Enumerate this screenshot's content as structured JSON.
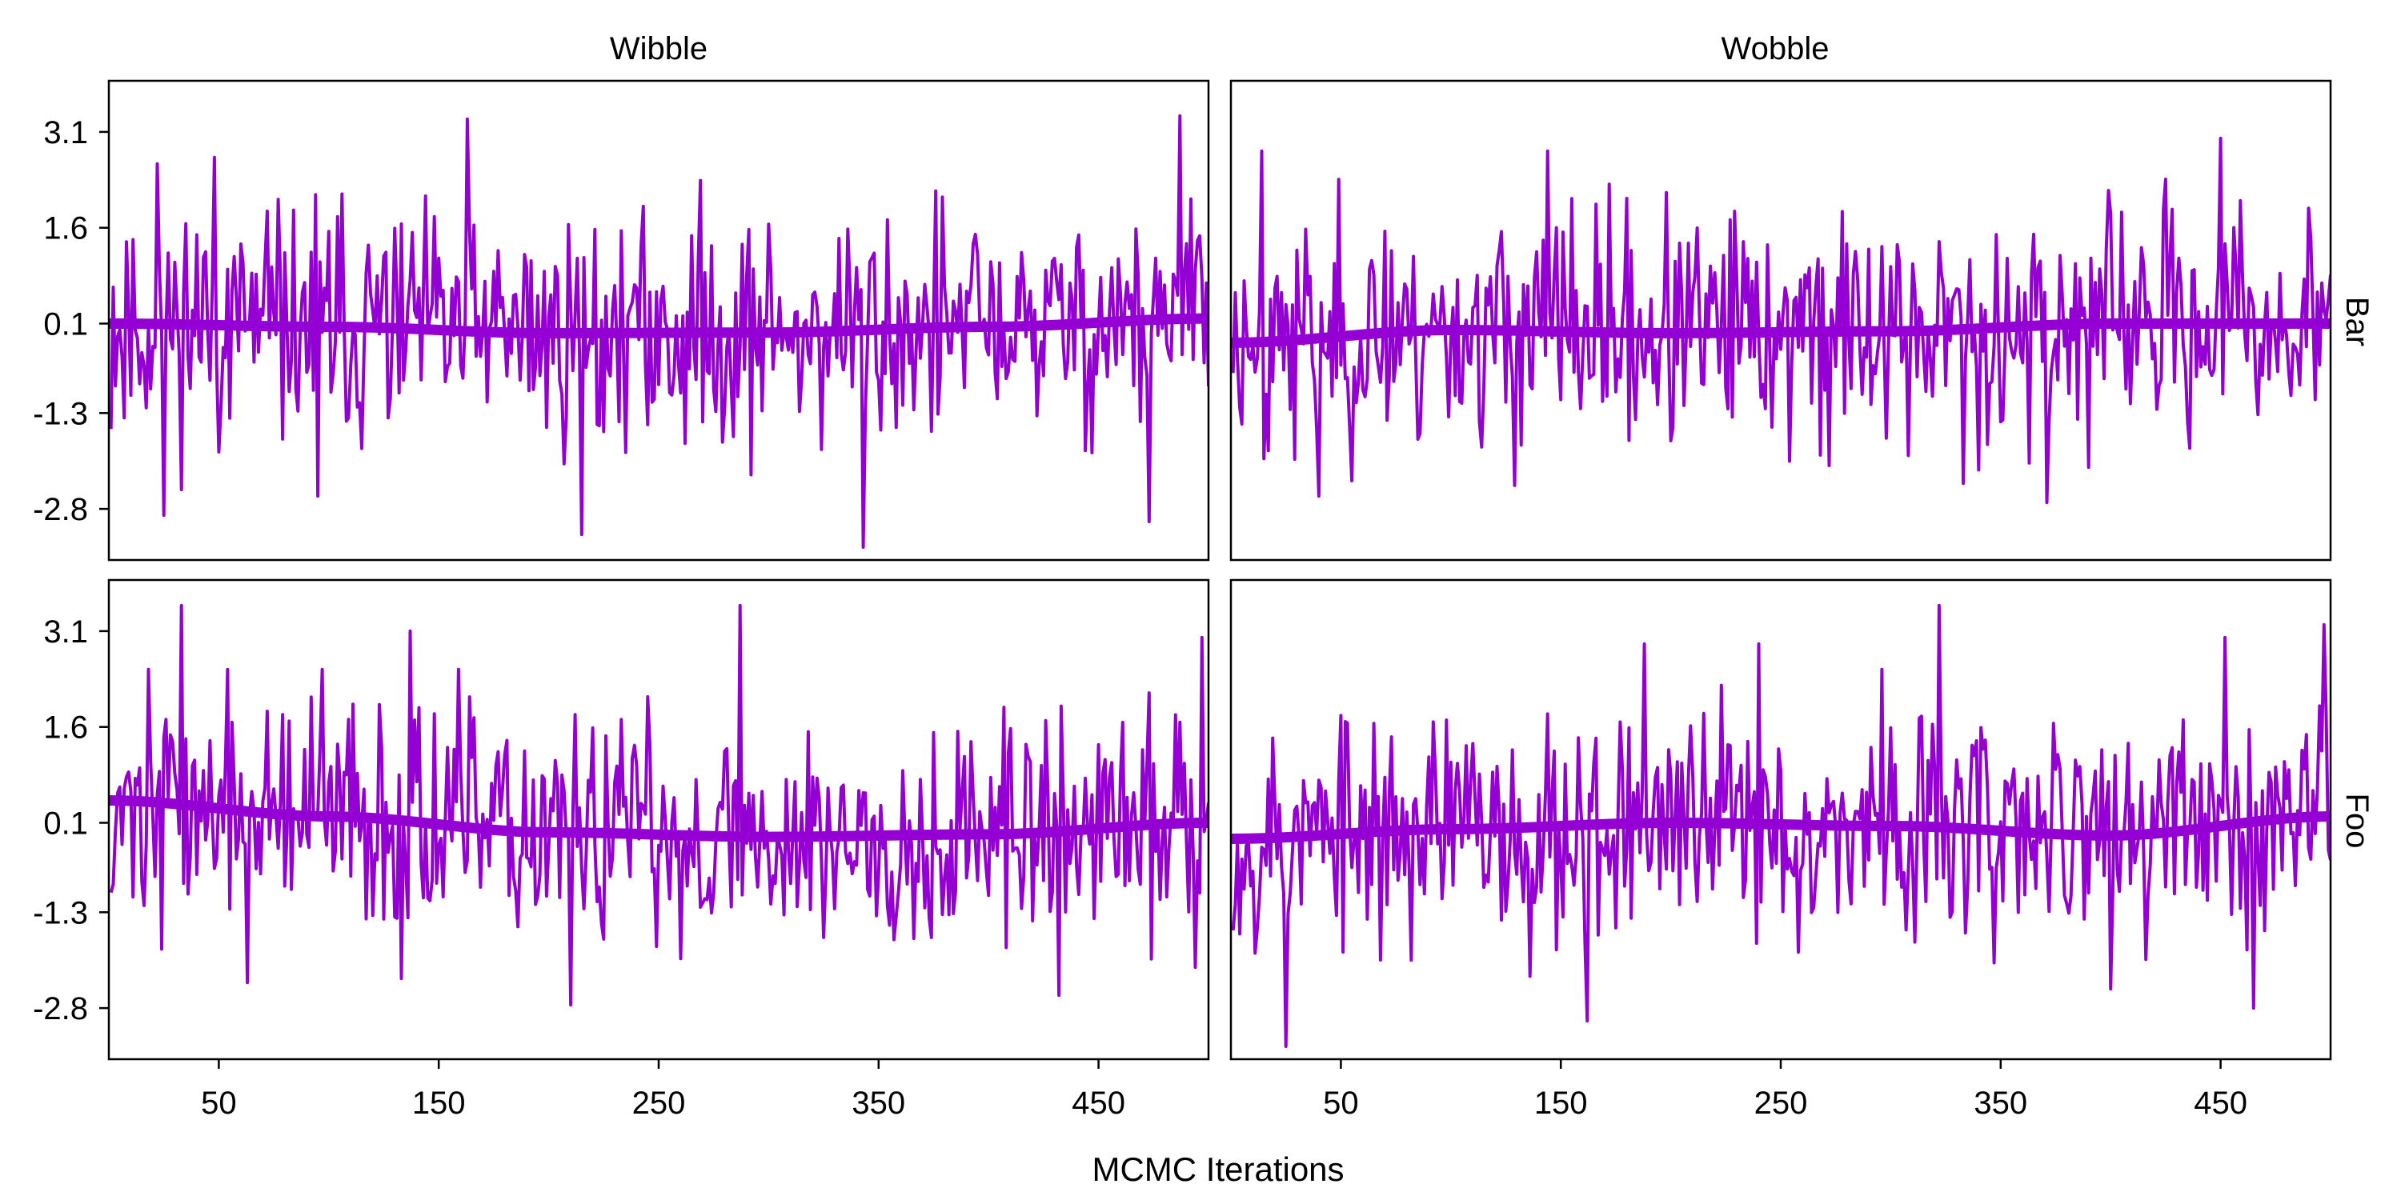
{
  "chart_data": {
    "type": "line",
    "layout": "faceted trace plots (2 rows x 2 columns)",
    "xlabel": "MCMC Iterations",
    "column_strips": [
      "Wibble",
      "Wobble"
    ],
    "row_strips": [
      "Bar",
      "Foo"
    ],
    "x_ticks": [
      50,
      150,
      250,
      350,
      450
    ],
    "y_ticks": [
      3.1,
      1.6,
      0.1,
      -1.3,
      -2.8
    ],
    "xlim": [
      0,
      500
    ],
    "ylim": [
      -3.6,
      3.9
    ],
    "grid": false,
    "legend": "none",
    "colors": {
      "trace": "#9400D3",
      "smooth": "#9400D3",
      "frame": "#000000"
    },
    "panels": [
      {
        "row": "Bar",
        "col": "Wibble",
        "iterations": 500,
        "trace_sd": 0.95,
        "seed": 11,
        "smooth": [
          [
            0,
            0.1
          ],
          [
            100,
            0.05
          ],
          [
            200,
            -0.05
          ],
          [
            300,
            -0.04
          ],
          [
            400,
            0.05
          ],
          [
            500,
            0.18
          ]
        ],
        "peaks": [
          [
            22,
            2.6
          ],
          [
            48,
            2.7
          ],
          [
            163,
            3.3
          ],
          [
            487,
            3.35
          ],
          [
            25,
            -2.9
          ],
          [
            215,
            -3.2
          ],
          [
            343,
            -3.4
          ],
          [
            473,
            -3.0
          ],
          [
            95,
            -2.6
          ]
        ]
      },
      {
        "row": "Bar",
        "col": "Wobble",
        "iterations": 500,
        "trace_sd": 0.95,
        "seed": 23,
        "smooth": [
          [
            0,
            -0.2
          ],
          [
            100,
            0.0
          ],
          [
            200,
            -0.05
          ],
          [
            300,
            -0.02
          ],
          [
            400,
            0.1
          ],
          [
            500,
            0.1
          ]
        ],
        "peaks": [
          [
            14,
            2.8
          ],
          [
            144,
            2.8
          ],
          [
            450,
            3.0
          ],
          [
            40,
            -2.6
          ],
          [
            371,
            -2.7
          ],
          [
            333,
            -2.4
          ]
        ]
      },
      {
        "row": "Foo",
        "col": "Wibble",
        "iterations": 500,
        "trace_sd": 0.95,
        "seed": 37,
        "smooth": [
          [
            0,
            0.45
          ],
          [
            100,
            0.2
          ],
          [
            200,
            -0.05
          ],
          [
            300,
            -0.12
          ],
          [
            400,
            -0.08
          ],
          [
            500,
            0.1
          ]
        ],
        "peaks": [
          [
            33,
            3.5
          ],
          [
            137,
            3.1
          ],
          [
            287,
            3.5
          ],
          [
            497,
            3.0
          ],
          [
            210,
            -2.75
          ],
          [
            432,
            -2.6
          ],
          [
            63,
            -2.4
          ]
        ]
      },
      {
        "row": "Foo",
        "col": "Wobble",
        "iterations": 500,
        "trace_sd": 0.95,
        "seed": 53,
        "smooth": [
          [
            0,
            -0.15
          ],
          [
            100,
            0.0
          ],
          [
            200,
            0.1
          ],
          [
            300,
            0.05
          ],
          [
            400,
            -0.1
          ],
          [
            500,
            0.2
          ]
        ],
        "peaks": [
          [
            188,
            2.9
          ],
          [
            240,
            2.9
          ],
          [
            322,
            3.5
          ],
          [
            452,
            3.0
          ],
          [
            497,
            3.2
          ],
          [
            25,
            -3.4
          ],
          [
            162,
            -3.0
          ],
          [
            465,
            -2.8
          ]
        ]
      }
    ]
  }
}
